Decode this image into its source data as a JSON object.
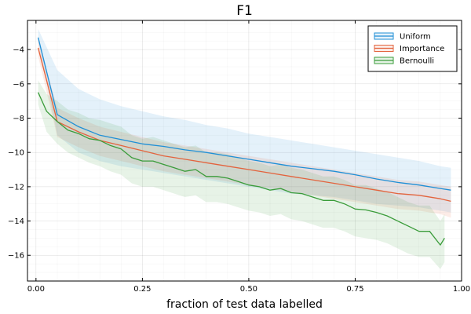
{
  "chart_data": {
    "type": "line",
    "title": "F1",
    "xlabel": "fraction of test data labelled",
    "ylabel": "",
    "xlim": [
      -0.02,
      1.0
    ],
    "ylim": [
      -17.5,
      -2.3
    ],
    "xticks": [
      0.0,
      0.25,
      0.5,
      0.75,
      1.0
    ],
    "xtick_labels": [
      "0.00",
      "0.25",
      "0.50",
      "0.75",
      "1.00"
    ],
    "yticks": [
      -4,
      -6,
      -8,
      -10,
      -12,
      -14,
      -16
    ],
    "ytick_labels": [
      "−4",
      "−6",
      "−8",
      "−10",
      "−12",
      "−14",
      "−16"
    ],
    "grid": true,
    "legend_position": "top-right",
    "series": [
      {
        "name": "Uniform",
        "color": "#1f8fd6",
        "x": [
          0.005,
          0.05,
          0.1,
          0.15,
          0.2,
          0.25,
          0.3,
          0.35,
          0.4,
          0.45,
          0.5,
          0.55,
          0.6,
          0.65,
          0.7,
          0.75,
          0.8,
          0.85,
          0.9,
          0.95,
          0.975
        ],
        "y": [
          -3.3,
          -7.8,
          -8.5,
          -9.0,
          -9.25,
          -9.5,
          -9.65,
          -9.85,
          -10.0,
          -10.2,
          -10.4,
          -10.6,
          -10.8,
          -10.95,
          -11.1,
          -11.3,
          -11.55,
          -11.75,
          -11.9,
          -12.1,
          -12.2
        ],
        "lower": [
          -3.6,
          -9.0,
          -10.0,
          -10.5,
          -10.8,
          -11.0,
          -11.2,
          -11.4,
          -11.6,
          -11.8,
          -12.0,
          -12.2,
          -12.4,
          -12.5,
          -12.6,
          -12.8,
          -13.0,
          -13.1,
          -13.2,
          -13.4,
          -13.5
        ],
        "upper": [
          -2.8,
          -5.2,
          -6.3,
          -6.9,
          -7.3,
          -7.6,
          -7.9,
          -8.1,
          -8.4,
          -8.6,
          -8.9,
          -9.1,
          -9.3,
          -9.5,
          -9.7,
          -9.9,
          -10.1,
          -10.3,
          -10.5,
          -10.8,
          -10.9
        ]
      },
      {
        "name": "Importance",
        "color": "#e3633d",
        "x": [
          0.005,
          0.05,
          0.1,
          0.15,
          0.2,
          0.25,
          0.3,
          0.35,
          0.4,
          0.45,
          0.5,
          0.55,
          0.6,
          0.65,
          0.7,
          0.75,
          0.8,
          0.85,
          0.9,
          0.95,
          0.975
        ],
        "y": [
          -3.9,
          -8.2,
          -8.8,
          -9.3,
          -9.6,
          -9.9,
          -10.2,
          -10.4,
          -10.6,
          -10.8,
          -11.0,
          -11.2,
          -11.4,
          -11.6,
          -11.8,
          -12.0,
          -12.2,
          -12.4,
          -12.5,
          -12.7,
          -12.85
        ],
        "lower": [
          -4.4,
          -9.1,
          -9.7,
          -10.2,
          -10.5,
          -10.8,
          -11.1,
          -11.3,
          -11.5,
          -11.7,
          -11.9,
          -12.1,
          -12.3,
          -12.5,
          -12.7,
          -12.9,
          -13.1,
          -13.3,
          -13.4,
          -13.6,
          -13.8
        ],
        "upper": [
          -3.4,
          -7.4,
          -8.0,
          -8.5,
          -8.8,
          -9.1,
          -9.4,
          -9.6,
          -9.8,
          -10.0,
          -10.2,
          -10.4,
          -10.6,
          -10.8,
          -11.0,
          -11.2,
          -11.4,
          -11.6,
          -11.7,
          -11.9,
          -12.0
        ]
      },
      {
        "name": "Bernoulli",
        "color": "#3a9c3a",
        "x": [
          0.005,
          0.025,
          0.05,
          0.075,
          0.1,
          0.125,
          0.15,
          0.175,
          0.2,
          0.225,
          0.25,
          0.275,
          0.3,
          0.325,
          0.35,
          0.375,
          0.4,
          0.425,
          0.45,
          0.475,
          0.5,
          0.525,
          0.55,
          0.575,
          0.6,
          0.625,
          0.65,
          0.675,
          0.7,
          0.725,
          0.75,
          0.775,
          0.8,
          0.825,
          0.85,
          0.875,
          0.9,
          0.925,
          0.95,
          0.96
        ],
        "y": [
          -6.5,
          -7.6,
          -8.2,
          -8.7,
          -8.9,
          -9.2,
          -9.3,
          -9.6,
          -9.8,
          -10.3,
          -10.5,
          -10.5,
          -10.7,
          -10.9,
          -11.1,
          -11.0,
          -11.4,
          -11.4,
          -11.5,
          -11.7,
          -11.9,
          -12.0,
          -12.2,
          -12.1,
          -12.35,
          -12.4,
          -12.6,
          -12.8,
          -12.8,
          -13.0,
          -13.3,
          -13.35,
          -13.5,
          -13.7,
          -14.0,
          -14.3,
          -14.6,
          -14.6,
          -15.4,
          -15.0
        ],
        "lower": [
          -7.2,
          -8.8,
          -9.5,
          -10.0,
          -10.3,
          -10.6,
          -10.8,
          -11.1,
          -11.3,
          -11.8,
          -12.0,
          -12.0,
          -12.2,
          -12.4,
          -12.6,
          -12.5,
          -12.9,
          -12.9,
          -13.0,
          -13.2,
          -13.4,
          -13.5,
          -13.7,
          -13.6,
          -13.9,
          -14.0,
          -14.2,
          -14.4,
          -14.4,
          -14.6,
          -14.9,
          -15.0,
          -15.1,
          -15.3,
          -15.6,
          -15.9,
          -16.1,
          -16.1,
          -16.8,
          -16.4
        ],
        "upper": [
          -5.8,
          -6.6,
          -7.0,
          -7.5,
          -7.7,
          -8.0,
          -8.1,
          -8.3,
          -8.5,
          -9.0,
          -9.2,
          -9.1,
          -9.3,
          -9.5,
          -9.7,
          -9.6,
          -10.0,
          -10.0,
          -10.1,
          -10.3,
          -10.5,
          -10.6,
          -10.8,
          -10.7,
          -10.9,
          -11.0,
          -11.2,
          -11.4,
          -11.4,
          -11.6,
          -11.9,
          -11.9,
          -12.1,
          -12.3,
          -12.6,
          -12.9,
          -13.1,
          -13.1,
          -14.0,
          -13.6
        ]
      }
    ]
  }
}
